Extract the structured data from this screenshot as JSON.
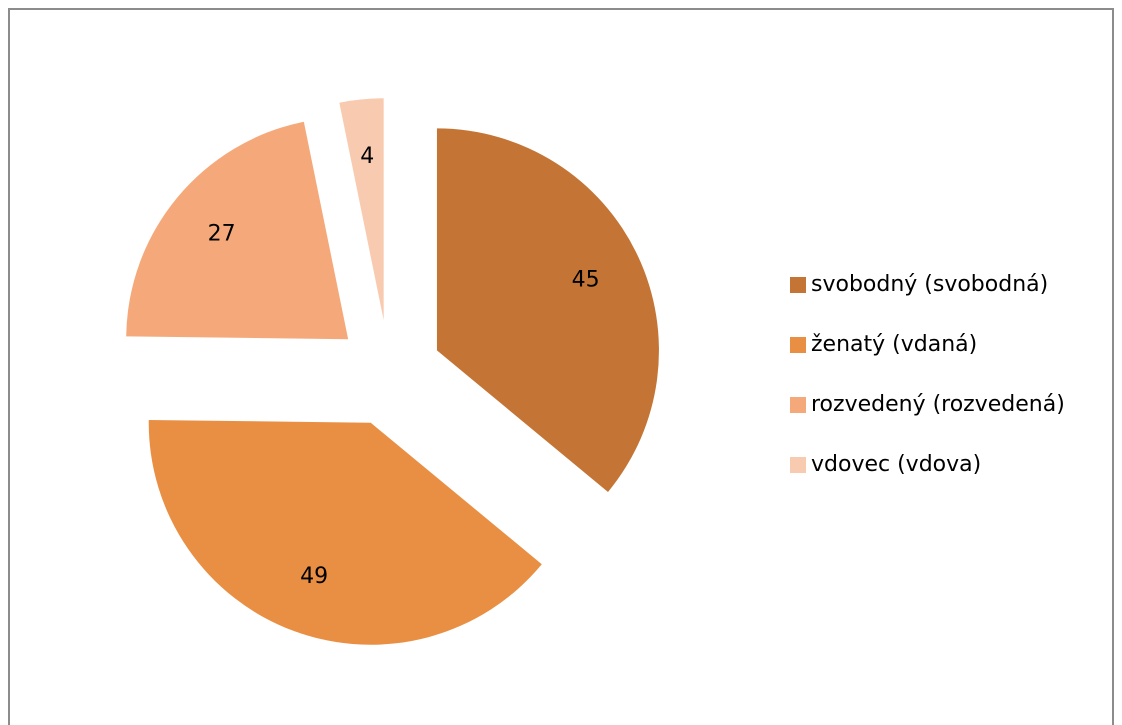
{
  "chart_data": {
    "type": "pie",
    "categories": [
      "svobodný (svobodná)",
      "ženatý (vdaná)",
      "rozvedený (rozvedená)",
      "vdovec (vdova)"
    ],
    "values": [
      45,
      49,
      27,
      4
    ],
    "colors": [
      "#c47535",
      "#e98f44",
      "#f5a97a",
      "#f8cbb0"
    ],
    "legend": "right"
  }
}
